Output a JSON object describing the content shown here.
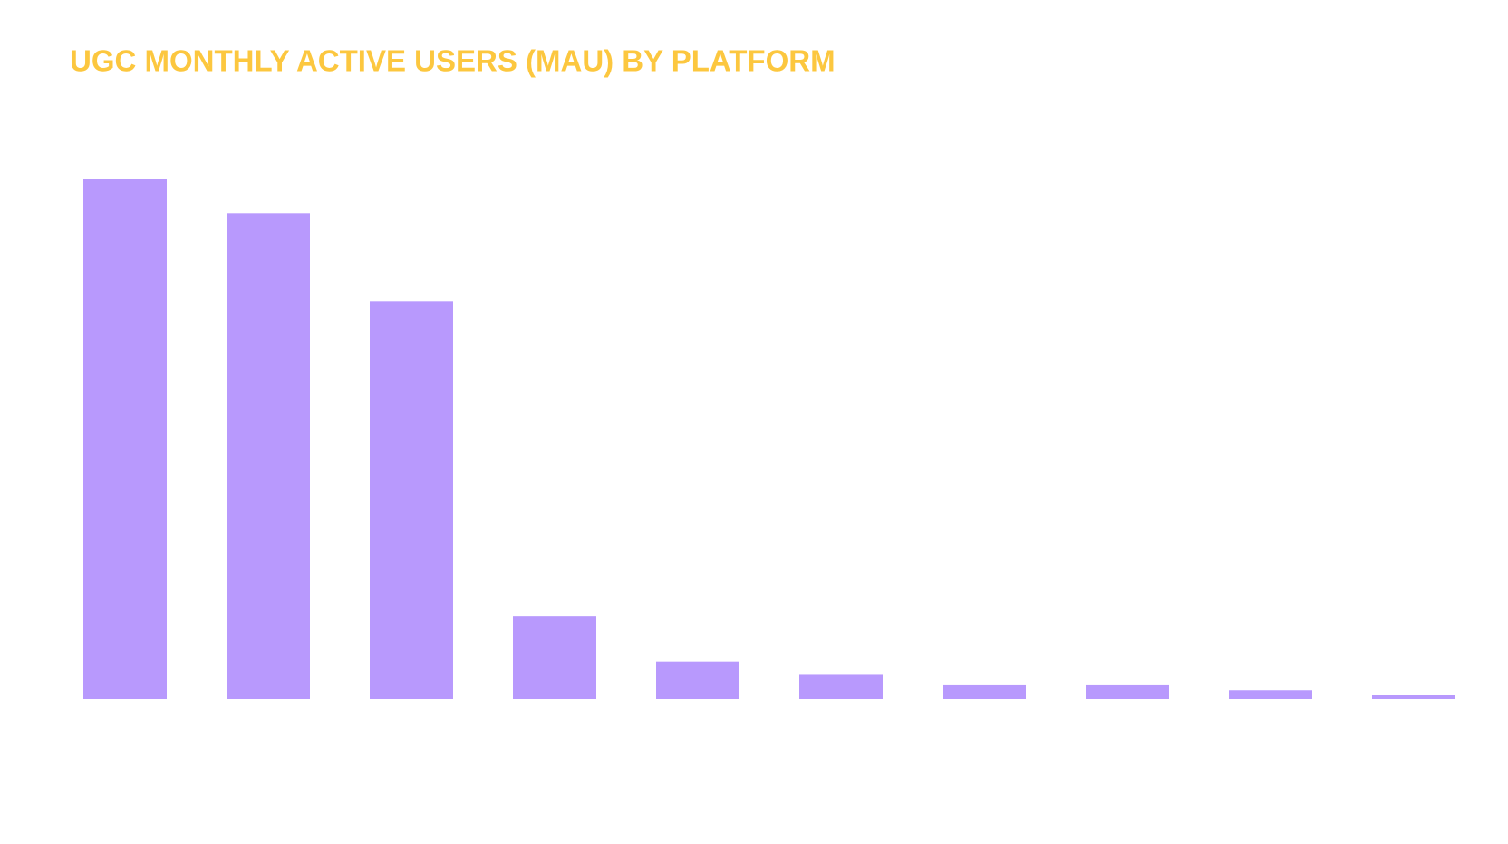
{
  "chart_data": {
    "type": "bar",
    "title": "UGC MONTHLY ACTIVE USERS (MAU) BY PLATFORM",
    "values": [
      100,
      93.5,
      76.6,
      16,
      7.2,
      4.8,
      2.8,
      2.8,
      1.7,
      0.7
    ],
    "color": "#b899fd",
    "ylim": [
      0,
      100
    ],
    "grid": false
  }
}
